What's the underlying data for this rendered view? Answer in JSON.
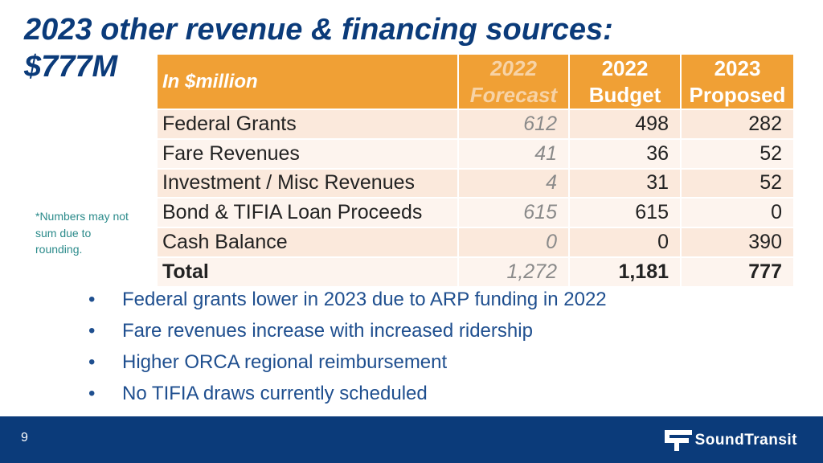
{
  "slide": {
    "title_line1": "2023 other revenue & financing sources:",
    "title_line2": "$777M",
    "note": "*Numbers may not sum due to rounding.",
    "page_number": "9",
    "logo_text": "SoundTransit"
  },
  "table": {
    "header": {
      "label": "In $million",
      "col_forecast_1": "2022",
      "col_forecast_2": "Forecast",
      "col_budget_1": "2022",
      "col_budget_2": "Budget",
      "col_proposed_1": "2023",
      "col_proposed_2": "Proposed"
    },
    "rows": [
      {
        "label": "Federal Grants",
        "forecast": "612",
        "budget": "498",
        "proposed": "282"
      },
      {
        "label": "Fare Revenues",
        "forecast": "41",
        "budget": "36",
        "proposed": "52"
      },
      {
        "label": "Investment / Misc Revenues",
        "forecast": "4",
        "budget": "31",
        "proposed": "52"
      },
      {
        "label": "Bond & TIFIA Loan Proceeds",
        "forecast": "615",
        "budget": "615",
        "proposed": "0"
      },
      {
        "label": "Cash Balance",
        "forecast": "0",
        "budget": "0",
        "proposed": "390"
      },
      {
        "label": "Total",
        "forecast": "1,272",
        "budget": "1,181",
        "proposed": "777"
      }
    ]
  },
  "bullets": [
    "Federal grants lower in 2023 due to ARP funding in 2022",
    "Fare revenues increase with increased ridership",
    "Higher ORCA regional reimbursement",
    "No TIFIA draws currently scheduled"
  ],
  "colors": {
    "title": "#0b3b7a",
    "header_bg": "#f0a035",
    "row_even": "#fbe9dc",
    "row_odd": "#fdf4ee",
    "footer_bg": "#0b3b7a",
    "note": "#2a8a8a",
    "bullets": "#1f4f8f"
  }
}
